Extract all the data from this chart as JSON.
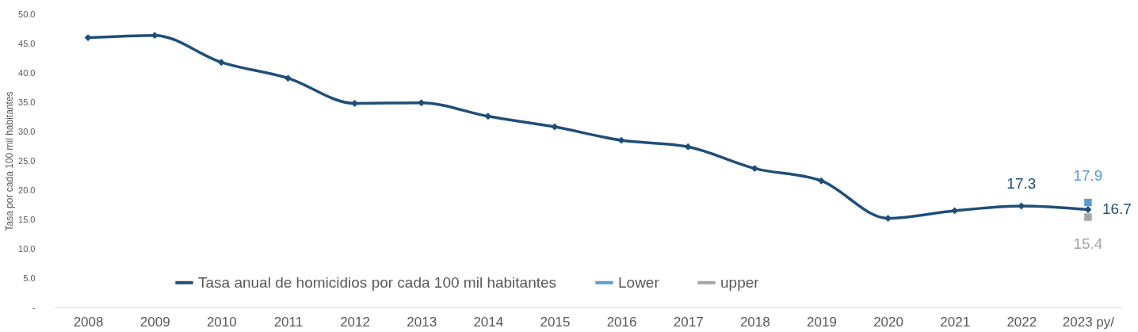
{
  "chart_data": {
    "type": "line",
    "ylabel": "Tasa por cada 100 mil habitantes",
    "categories": [
      "2008",
      "2009",
      "2010",
      "2011",
      "2012",
      "2013",
      "2014",
      "2015",
      "2016",
      "2017",
      "2018",
      "2019",
      "2020",
      "2021",
      "2022",
      "2023 py/"
    ],
    "ylim": [
      0,
      50
    ],
    "yticks": [
      {
        "value": 0,
        "label": "-"
      },
      {
        "value": 5,
        "label": "5.0"
      },
      {
        "value": 10,
        "label": "10.0"
      },
      {
        "value": 15,
        "label": "15.0"
      },
      {
        "value": 20,
        "label": "20.0"
      },
      {
        "value": 25,
        "label": "25.0"
      },
      {
        "value": 30,
        "label": "30.0"
      },
      {
        "value": 35,
        "label": "35.0"
      },
      {
        "value": 40,
        "label": "40.0"
      },
      {
        "value": 45,
        "label": "45.0"
      },
      {
        "value": 50,
        "label": "50.0"
      }
    ],
    "series": [
      {
        "name": "Tasa anual de homicidios por cada 100 mil habitantes",
        "color": "#1f4e79",
        "marker": "diamond",
        "values": [
          46.0,
          46.4,
          41.8,
          39.1,
          34.8,
          34.9,
          32.6,
          30.8,
          28.5,
          27.4,
          23.7,
          21.6,
          15.2,
          16.5,
          17.3,
          16.7
        ],
        "value_labels": [
          null,
          null,
          null,
          null,
          null,
          null,
          null,
          null,
          null,
          null,
          null,
          null,
          null,
          null,
          "17.3",
          "16.7"
        ]
      },
      {
        "name": "Lower",
        "type": "scatter",
        "marker": "square",
        "color": "#5b9bd5",
        "values": [
          null,
          null,
          null,
          null,
          null,
          null,
          null,
          null,
          null,
          null,
          null,
          null,
          null,
          null,
          null,
          17.9
        ],
        "value_labels": [
          null,
          null,
          null,
          null,
          null,
          null,
          null,
          null,
          null,
          null,
          null,
          null,
          null,
          null,
          null,
          "17.9"
        ]
      },
      {
        "name": "upper",
        "type": "scatter",
        "marker": "square",
        "color": "#a5a5a5",
        "values": [
          null,
          null,
          null,
          null,
          null,
          null,
          null,
          null,
          null,
          null,
          null,
          null,
          null,
          null,
          null,
          15.4
        ],
        "value_labels": [
          null,
          null,
          null,
          null,
          null,
          null,
          null,
          null,
          null,
          null,
          null,
          null,
          null,
          null,
          null,
          "15.4"
        ]
      }
    ],
    "legend": "bottom",
    "grid": false
  }
}
